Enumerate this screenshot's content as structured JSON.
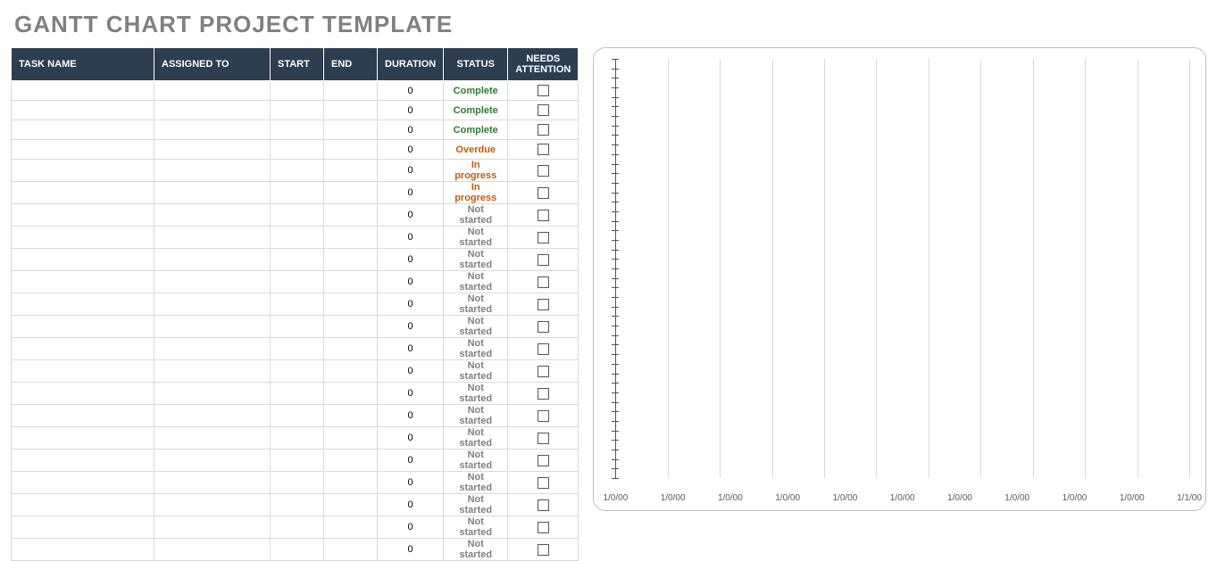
{
  "title": "GANTT CHART PROJECT TEMPLATE",
  "table": {
    "headers": {
      "task_name": "TASK NAME",
      "assigned_to": "ASSIGNED TO",
      "start": "START",
      "end": "END",
      "duration": "DURATION",
      "status": "STATUS",
      "needs_attention": "NEEDS ATTENTION"
    },
    "status_colors": {
      "Complete": "#2e7d32",
      "Overdue": "#c55a11",
      "In progress": "#c55a11",
      "Not started": "#808080"
    },
    "rows": [
      {
        "task_name": "",
        "assigned_to": "",
        "start": "",
        "end": "",
        "duration": "0",
        "status": "Complete",
        "needs_attention": false
      },
      {
        "task_name": "",
        "assigned_to": "",
        "start": "",
        "end": "",
        "duration": "0",
        "status": "Complete",
        "needs_attention": false
      },
      {
        "task_name": "",
        "assigned_to": "",
        "start": "",
        "end": "",
        "duration": "0",
        "status": "Complete",
        "needs_attention": false
      },
      {
        "task_name": "",
        "assigned_to": "",
        "start": "",
        "end": "",
        "duration": "0",
        "status": "Overdue",
        "needs_attention": false
      },
      {
        "task_name": "",
        "assigned_to": "",
        "start": "",
        "end": "",
        "duration": "0",
        "status": "In progress",
        "needs_attention": false
      },
      {
        "task_name": "",
        "assigned_to": "",
        "start": "",
        "end": "",
        "duration": "0",
        "status": "In progress",
        "needs_attention": false
      },
      {
        "task_name": "",
        "assigned_to": "",
        "start": "",
        "end": "",
        "duration": "0",
        "status": "Not started",
        "needs_attention": false
      },
      {
        "task_name": "",
        "assigned_to": "",
        "start": "",
        "end": "",
        "duration": "0",
        "status": "Not started",
        "needs_attention": false
      },
      {
        "task_name": "",
        "assigned_to": "",
        "start": "",
        "end": "",
        "duration": "0",
        "status": "Not started",
        "needs_attention": false
      },
      {
        "task_name": "",
        "assigned_to": "",
        "start": "",
        "end": "",
        "duration": "0",
        "status": "Not started",
        "needs_attention": false
      },
      {
        "task_name": "",
        "assigned_to": "",
        "start": "",
        "end": "",
        "duration": "0",
        "status": "Not started",
        "needs_attention": false
      },
      {
        "task_name": "",
        "assigned_to": "",
        "start": "",
        "end": "",
        "duration": "0",
        "status": "Not started",
        "needs_attention": false
      },
      {
        "task_name": "",
        "assigned_to": "",
        "start": "",
        "end": "",
        "duration": "0",
        "status": "Not started",
        "needs_attention": false
      },
      {
        "task_name": "",
        "assigned_to": "",
        "start": "",
        "end": "",
        "duration": "0",
        "status": "Not started",
        "needs_attention": false
      },
      {
        "task_name": "",
        "assigned_to": "",
        "start": "",
        "end": "",
        "duration": "0",
        "status": "Not started",
        "needs_attention": false
      },
      {
        "task_name": "",
        "assigned_to": "",
        "start": "",
        "end": "",
        "duration": "0",
        "status": "Not started",
        "needs_attention": false
      },
      {
        "task_name": "",
        "assigned_to": "",
        "start": "",
        "end": "",
        "duration": "0",
        "status": "Not started",
        "needs_attention": false
      },
      {
        "task_name": "",
        "assigned_to": "",
        "start": "",
        "end": "",
        "duration": "0",
        "status": "Not started",
        "needs_attention": false
      },
      {
        "task_name": "",
        "assigned_to": "",
        "start": "",
        "end": "",
        "duration": "0",
        "status": "Not started",
        "needs_attention": false
      },
      {
        "task_name": "",
        "assigned_to": "",
        "start": "",
        "end": "",
        "duration": "0",
        "status": "Not started",
        "needs_attention": false
      },
      {
        "task_name": "",
        "assigned_to": "",
        "start": "",
        "end": "",
        "duration": "0",
        "status": "Not started",
        "needs_attention": false
      },
      {
        "task_name": "",
        "assigned_to": "",
        "start": "",
        "end": "",
        "duration": "0",
        "status": "Not started",
        "needs_attention": false
      }
    ]
  },
  "chart": {
    "type": "gantt",
    "background_color": "#ffffff",
    "border_color": "#bfbfbf",
    "axis_color": "#555555",
    "grid_color": "#d9d9d9",
    "y_tick_count": 44,
    "gridline_count": 11,
    "x_labels": [
      "1/0/00",
      "1/0/00",
      "1/0/00",
      "1/0/00",
      "1/0/00",
      "1/0/00",
      "1/0/00",
      "1/0/00",
      "1/0/00",
      "1/0/00",
      "1/1/00"
    ],
    "label_color": "#595959",
    "label_fontsize": 10
  }
}
